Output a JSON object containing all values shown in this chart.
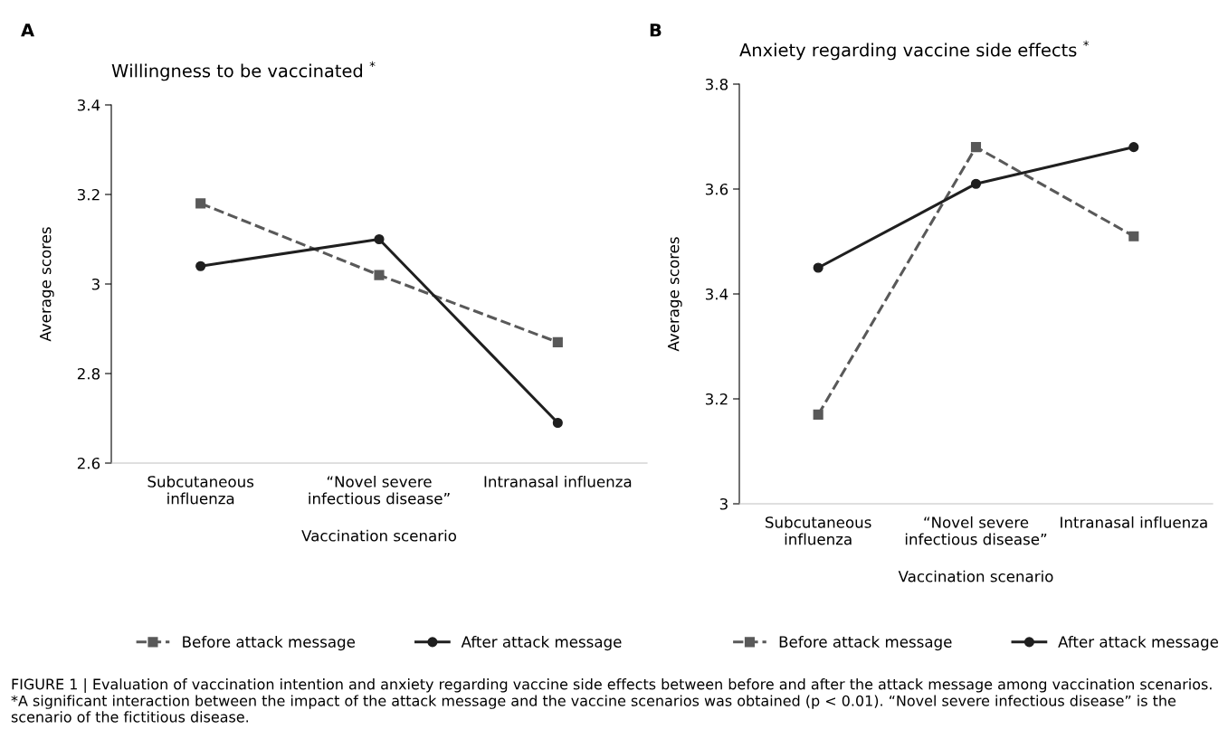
{
  "chart_data": [
    {
      "type": "line",
      "title": "Willingness to be vaccinated $^{*}$",
      "xlabel": "Vaccination scenario",
      "ylabel": "Average scores",
      "categories": [
        "Subcutaneous\ninfluenza",
        "“Novel severe\ninfectious disease”",
        "Intranasal influenza"
      ],
      "series": [
        {
          "name": "Before attack message",
          "color": "#595959",
          "values": [
            3.18,
            3.02,
            2.87
          ],
          "marker": "square",
          "line_style": "dashed"
        },
        {
          "name": "After attack message",
          "color": "#1f1f1f",
          "values": [
            3.04,
            3.1,
            2.69
          ],
          "marker": "circle",
          "line_style": "solid"
        }
      ],
      "ylim": [
        2.6,
        3.4
      ],
      "yticks": [
        2.6,
        2.8,
        3,
        3.2,
        3.4
      ],
      "grid": false,
      "legend": "bottom",
      "annotations": [
        "A"
      ]
    },
    {
      "type": "line",
      "title": "Anxiety regarding vaccine side effects $^{*}$",
      "xlabel": "Vaccination scenario",
      "ylabel": "Average scores",
      "categories": [
        "Subcutaneous\ninfluenza",
        "“Novel severe\ninfectious disease”",
        "Intranasal influenza"
      ],
      "series": [
        {
          "name": "Before attack message",
          "color": "#595959",
          "values": [
            3.17,
            3.68,
            3.51
          ],
          "marker": "square",
          "line_style": "dashed"
        },
        {
          "name": "After attack message",
          "color": "#1f1f1f",
          "values": [
            3.45,
            3.61,
            3.68
          ],
          "marker": "circle",
          "line_style": "solid"
        }
      ],
      "ylim": [
        3,
        3.8
      ],
      "yticks": [
        3,
        3.2,
        3.4,
        3.6,
        3.8
      ],
      "grid": false,
      "legend": "bottom",
      "annotations": [
        "B",
        "FIGURE 1 | Evaluation of vaccination intention and anxiety regarding vaccine side effects between before and after the attack message among vaccination scenarios. *A significant interaction between the impact of the attack message and the vaccine scenarios was obtained (p < 0.01). “Novel severe infectious disease” is the scenario of the fictitious disease."
      ]
    }
  ]
}
